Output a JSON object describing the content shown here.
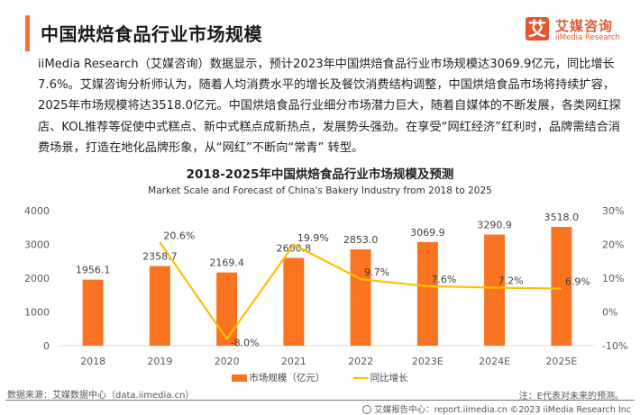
{
  "header": {
    "title": "中国烘焙食品行业市场规模",
    "accent_color": "#FF6B35"
  },
  "logo": {
    "glyph": "艾",
    "name_cn": "艾媒咨询",
    "name_en": "iiMedia Research",
    "color": "#E4572E"
  },
  "paragraph": "iiMedia Research（艾媒咨询）数据显示，预计2023年中国烘焙食品行业市场规模达3069.9亿元，同比增长7.6%。艾媒咨询分析师认为，随着人均消费水平的增长及餐饮消费结构调整，中国烘焙食品市场将持续扩容，2025年市场规模将达3518.0亿元。中国烘焙食品行业细分市场潜力巨大，随着自媒体的不断发展，各类网红探店、KOL推荐等促使中式糕点、新中式糕点成新热点，发展势头强劲。在享受“网红经济”红利时，品牌需结合消费场景，打造在地化品牌形象，从“网红”不断向“常青” 转型。",
  "chart_data": {
    "type": "bar",
    "title": "2018-2025年中国烘焙食品行业市场规模及预测",
    "subtitle": "Market Scale and Forecast of China's Bakery Industry from 2018 to 2025",
    "categories": [
      "2018",
      "2019",
      "2020",
      "2021",
      "2022",
      "2023E",
      "2024E",
      "2025E"
    ],
    "series": [
      {
        "name": "市场规模（亿元）",
        "type": "bar",
        "axis": "left",
        "color": "#FA7320",
        "values": [
          1956.1,
          2358.7,
          2169.4,
          2600.8,
          2853.0,
          3069.9,
          3290.9,
          3518.0
        ],
        "labels": [
          "1956.1",
          "2358.7",
          "2169.4",
          "2600.8",
          "2853.0",
          "3069.9",
          "3290.9",
          "3518.0"
        ]
      },
      {
        "name": "同比增长",
        "type": "line",
        "axis": "right",
        "color": "#FFC000",
        "values": [
          null,
          20.6,
          -8.0,
          19.9,
          9.7,
          7.6,
          7.2,
          6.9
        ],
        "labels": [
          "",
          "20.6%",
          "-8.0%",
          "19.9%",
          "9.7%",
          "7.6%",
          "7.2%",
          "6.9%"
        ]
      }
    ],
    "y_left": {
      "ylim": [
        0,
        4000
      ],
      "ticks": [
        "0",
        "1000",
        "2000",
        "3000",
        "4000"
      ],
      "tick_values": [
        0,
        1000,
        2000,
        3000,
        4000
      ]
    },
    "y_right": {
      "ylim": [
        -10,
        30
      ],
      "ticks": [
        "-10%",
        "0%",
        "10%",
        "20%",
        "30%"
      ],
      "tick_values": [
        -10,
        0,
        10,
        20,
        30
      ]
    },
    "xlabel": "",
    "ylabel": "",
    "grid": false,
    "legend": "bottom"
  },
  "footer": {
    "source": "数据来源：艾媒数据中心（data.iimedia.cn）",
    "note": "注：E代表对未来的预测。",
    "report_center": "艾媒报告中心：report.iimedia.cn  ©2023  iiMedia Research  Inc"
  }
}
